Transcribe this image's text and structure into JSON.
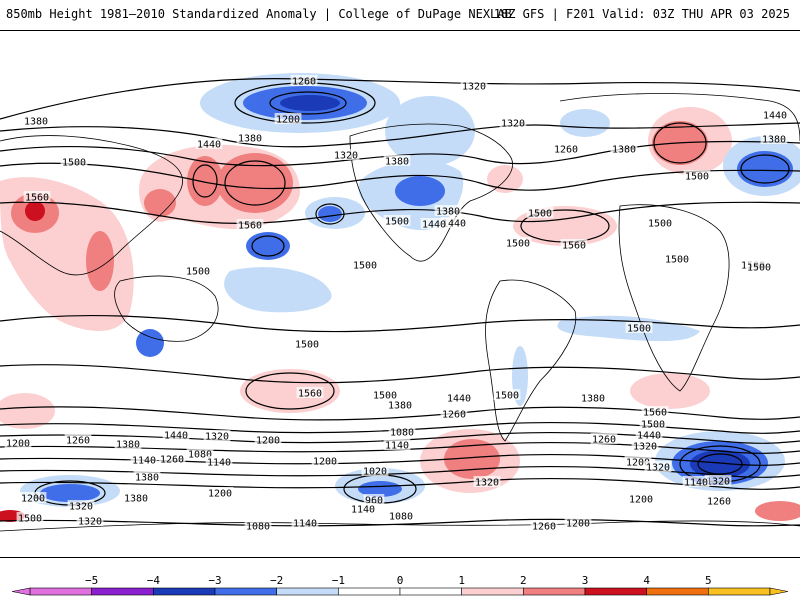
{
  "header": {
    "title": "850mb Height 1981–2010 Standardized Anomaly | College of DuPage NEXLAB",
    "valid": "18Z GFS | F201 Valid: 03Z THU APR 03 2025"
  },
  "colors": {
    "neg5": "#e070e0",
    "neg4": "#8a1fd0",
    "neg3": "#1a3ab8",
    "neg2": "#3f6ee8",
    "neg1": "#c4dcf8",
    "zero": "#ffffff",
    "pos1": "#fcd0d0",
    "pos2": "#f08080",
    "pos3": "#cc1020",
    "pos4": "#f07010",
    "pos5": "#f8c020"
  },
  "colorbar": {
    "ticks": [
      "−5",
      "−4",
      "−3",
      "−2",
      "−1",
      "0",
      "1",
      "2",
      "3",
      "4",
      "5"
    ]
  },
  "contour_labels": [
    "1260",
    "1320",
    "1200",
    "1380",
    "1320",
    "1380",
    "1440",
    "1380",
    "1320",
    "1380",
    "1260",
    "1440",
    "1380",
    "1500",
    "1560",
    "1440",
    "1560",
    "1500",
    "1500",
    "1380",
    "1440",
    "1500",
    "1560",
    "1500",
    "1500",
    "1500",
    "1500",
    "1500",
    "1500",
    "1500",
    "1500",
    "1500",
    "1560",
    "1500",
    "1440",
    "1500",
    "1380",
    "1380",
    "1560",
    "1500",
    "1440",
    "1320",
    "1260",
    "1200",
    "1200",
    "1260",
    "1380",
    "1440",
    "1320",
    "1200",
    "1140",
    "1260",
    "1080",
    "1200",
    "1140",
    "1260",
    "1080",
    "1140",
    "1200",
    "1380",
    "1020",
    "960",
    "1320",
    "1320",
    "1200",
    "1140",
    "1080",
    "1080",
    "1140",
    "1380",
    "1320",
    "1260",
    "1200",
    "1140",
    "1260",
    "1200",
    "1320",
    "1500",
    "1320"
  ]
}
